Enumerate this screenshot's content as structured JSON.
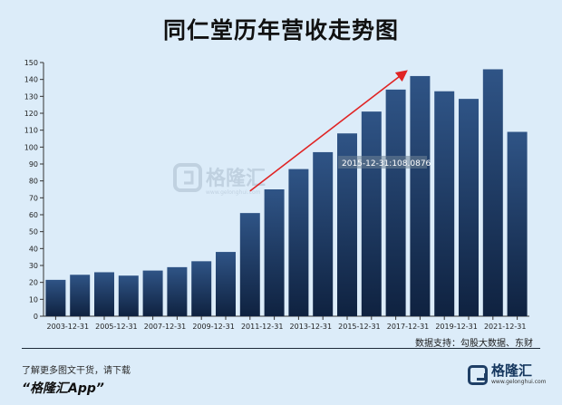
{
  "title": "同仁堂历年营收走势图",
  "source": "数据支持：勾股大数据、东财",
  "footer": {
    "line1": "了解更多图文干货，请下载",
    "line2": "“格隆汇App”"
  },
  "brand": {
    "name": "格隆汇",
    "url": "www.gelonghui.com"
  },
  "watermark": {
    "name": "格隆汇",
    "url": "www.gelonghui.com"
  },
  "tooltip": "2015-12-31:108.0876",
  "colors": {
    "bar_top": "#2f5486",
    "bar_bottom": "#0f2240",
    "arrow": "#e02424"
  },
  "chart_data": {
    "type": "bar",
    "title": "同仁堂历年营收走势图",
    "xlabel": "",
    "ylabel": "",
    "ylim": [
      0,
      150
    ],
    "yticks": [
      0,
      10,
      20,
      30,
      40,
      50,
      60,
      70,
      80,
      90,
      100,
      110,
      120,
      130,
      140,
      150
    ],
    "categories": [
      "2003-12-31",
      "2004-12-31",
      "2005-12-31",
      "2006-12-31",
      "2007-12-31",
      "2008-12-31",
      "2009-12-31",
      "2010-12-31",
      "2011-12-31",
      "2012-12-31",
      "2013-12-31",
      "2014-12-31",
      "2015-12-31",
      "2016-12-31",
      "2017-12-31",
      "2018-12-31",
      "2019-12-31",
      "2020-12-31",
      "2021-12-31",
      "2022-12-31"
    ],
    "xtick_labels": [
      "2003-12-31",
      "",
      "2005-12-31",
      "",
      "2007-12-31",
      "",
      "2009-12-31",
      "",
      "2011-12-31",
      "",
      "2013-12-31",
      "",
      "2015-12-31",
      "",
      "2017-12-31",
      "",
      "2019-12-31",
      "",
      "2021-12-31",
      ""
    ],
    "values": [
      21.5,
      24.5,
      26.0,
      24.0,
      27.0,
      29.0,
      32.5,
      38.0,
      61.0,
      75.0,
      87.0,
      97.0,
      108.0876,
      121.0,
      134.0,
      142.0,
      133.0,
      128.5,
      146.0,
      109.0
    ],
    "grid": false,
    "legend": "none"
  }
}
